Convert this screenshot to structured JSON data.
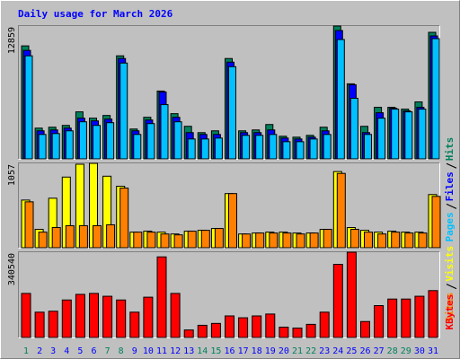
{
  "chart_data": [
    {
      "type": "bar",
      "title": "Daily usage for March 2026",
      "categories": [
        "1",
        "2",
        "3",
        "4",
        "5",
        "6",
        "7",
        "8",
        "9",
        "10",
        "11",
        "12",
        "13",
        "14",
        "15",
        "16",
        "17",
        "18",
        "19",
        "20",
        "21",
        "22",
        "23",
        "24",
        "25",
        "26",
        "27",
        "28",
        "29",
        "30",
        "31"
      ],
      "category_colors": [
        "#00805c",
        "#0000ff",
        "#0000ff",
        "#0000ff",
        "#0000ff",
        "#0000ff",
        "#00805c",
        "#00805c",
        "#0000ff",
        "#0000ff",
        "#0000ff",
        "#0000ff",
        "#0000ff",
        "#00805c",
        "#00805c",
        "#0000ff",
        "#0000ff",
        "#0000ff",
        "#0000ff",
        "#0000ff",
        "#00805c",
        "#00805c",
        "#0000ff",
        "#0000ff",
        "#0000ff",
        "#0000ff",
        "#0000ff",
        "#00805c",
        "#00805c",
        "#0000ff",
        "#0000ff"
      ],
      "ylim": [
        0,
        12859
      ],
      "series": [
        {
          "name": "Hits",
          "color": "#00805c",
          "values": [
            10938,
            2975,
            3063,
            3238,
            4550,
            3938,
            4200,
            9975,
            2888,
            4025,
            6563,
            4375,
            3150,
            2538,
            2713,
            9713,
            2713,
            2800,
            3325,
            2188,
            2100,
            2275,
            3063,
            12859,
            7263,
            3150,
            4988,
            4988,
            4813,
            5513,
            12250
          ]
        },
        {
          "name": "Files",
          "color": "#0000ff",
          "values": [
            10500,
            2713,
            2800,
            2975,
            3938,
            3675,
            3850,
            9713,
            2713,
            3763,
            6475,
            4025,
            2538,
            2363,
            2363,
            9363,
            2538,
            2538,
            2800,
            2013,
            1925,
            2100,
            2713,
            12425,
            7175,
            2538,
            4463,
            4900,
            4638,
            4988,
            11900
          ]
        },
        {
          "name": "Pages",
          "color": "#00c0ff",
          "values": [
            9975,
            2363,
            2450,
            2713,
            3588,
            3238,
            3500,
            9275,
            2363,
            3413,
            5250,
            3588,
            1925,
            1925,
            2013,
            8925,
            2275,
            2275,
            2363,
            1663,
            1663,
            1925,
            2363,
            11550,
            5863,
            2363,
            3938,
            4813,
            4550,
            4813,
            11638
          ]
        }
      ]
    },
    {
      "type": "bar",
      "ylim": [
        0,
        1057
      ],
      "series": [
        {
          "name": "Visits",
          "color": "#ffff00",
          "values": [
            597,
            230,
            620,
            885,
            1046,
            1057,
            896,
            770,
            195,
            207,
            195,
            172,
            207,
            218,
            241,
            678,
            172,
            184,
            195,
            195,
            184,
            184,
            230,
            954,
            253,
            218,
            195,
            207,
            195,
            195,
            666
          ]
        },
        {
          "name": "Sites",
          "color": "#ff8000",
          "values": [
            575,
            195,
            253,
            276,
            276,
            276,
            287,
            747,
            195,
            195,
            172,
            161,
            207,
            218,
            241,
            678,
            172,
            184,
            184,
            184,
            172,
            184,
            230,
            931,
            230,
            195,
            172,
            195,
            184,
            184,
            643
          ]
        }
      ]
    },
    {
      "type": "bar",
      "ylim": [
        0,
        340540
      ],
      "series": [
        {
          "name": "KBytes",
          "color": "#ff0000",
          "values": [
            175874,
            101034,
            104776,
            149680,
            172132,
            175874,
            164648,
            149680,
            101034,
            160906,
            321812,
            175874,
            29936,
            48646,
            56130,
            86066,
            78582,
            86066,
            93550,
            41162,
            37420,
            52388,
            101034,
            291876,
            340540,
            63614,
            127228,
            153422,
            153422,
            164648,
            187100
          ]
        }
      ]
    }
  ]
}
